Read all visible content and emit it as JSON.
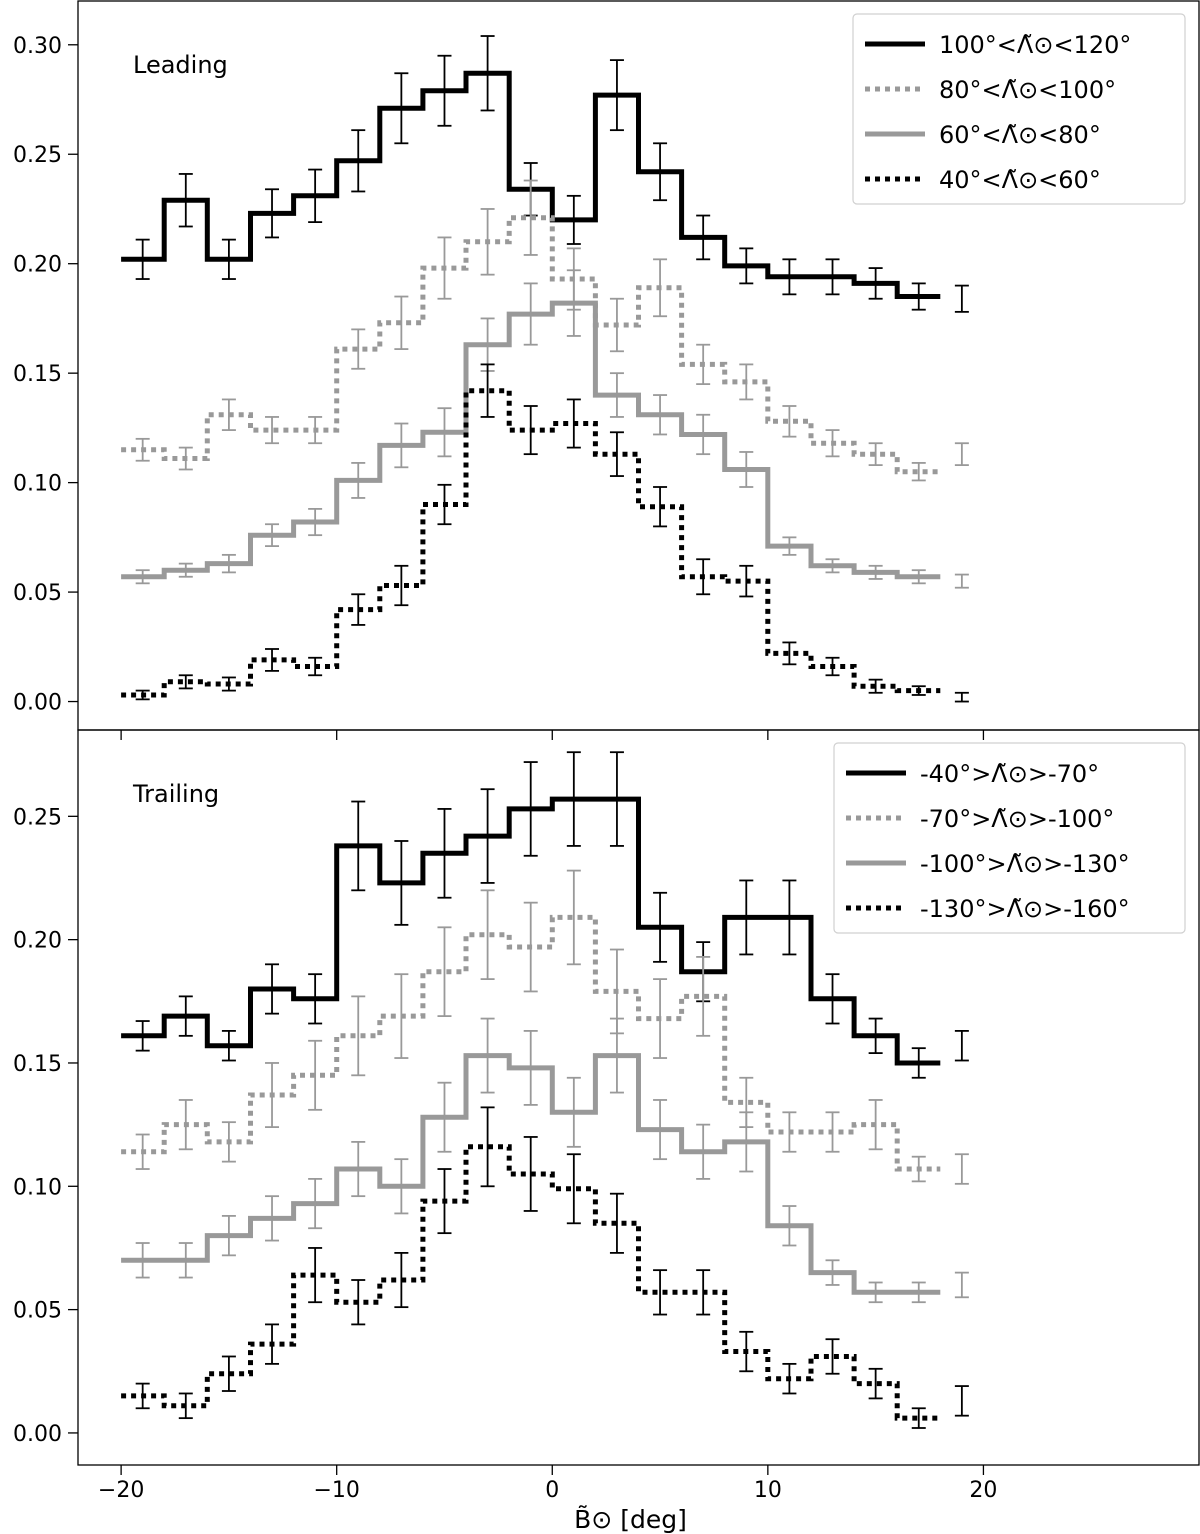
{
  "figure": {
    "xlabel": "B̃⊙ [deg]",
    "xticks": [
      -20,
      -10,
      0,
      10,
      20
    ]
  },
  "chart_data": [
    {
      "type": "line",
      "panel_label": "Leading",
      "xlim": [
        -22,
        30
      ],
      "ylim": [
        -0.013,
        0.32
      ],
      "yticks": [
        "0.00",
        "0.05",
        "0.10",
        "0.15",
        "0.20",
        "0.25",
        "0.30"
      ],
      "ytick_values": [
        0,
        0.05,
        0.1,
        0.15,
        0.2,
        0.25,
        0.3
      ],
      "legend_position": "top-right",
      "x": [
        -19,
        -17,
        -15,
        -13,
        -11,
        -9,
        -7,
        -5,
        -3,
        -1,
        1,
        3,
        5,
        7,
        9,
        11,
        13,
        15,
        17,
        19
      ],
      "series": [
        {
          "name": "100°<Λ̃⊙<120°",
          "color": "#000000",
          "style": "solid",
          "values": [
            0.202,
            0.229,
            0.202,
            0.223,
            0.231,
            0.247,
            0.271,
            0.279,
            0.287,
            0.234,
            0.22,
            0.277,
            0.242,
            0.212,
            0.199,
            0.194,
            0.194,
            0.191,
            0.185,
            0.184
          ],
          "errors": [
            0.009,
            0.012,
            0.009,
            0.011,
            0.012,
            0.014,
            0.016,
            0.016,
            0.017,
            0.012,
            0.011,
            0.016,
            0.013,
            0.01,
            0.008,
            0.008,
            0.008,
            0.007,
            0.006,
            0.006
          ]
        },
        {
          "name": "80°<Λ̃⊙<100°",
          "color": "#999999",
          "style": "dotted",
          "values": [
            0.115,
            0.111,
            0.131,
            0.124,
            0.124,
            0.161,
            0.173,
            0.198,
            0.21,
            0.221,
            0.193,
            0.172,
            0.189,
            0.154,
            0.146,
            0.128,
            0.118,
            0.113,
            0.105,
            0.113
          ],
          "errors": [
            0.005,
            0.005,
            0.007,
            0.006,
            0.006,
            0.009,
            0.012,
            0.014,
            0.015,
            0.017,
            0.014,
            0.012,
            0.013,
            0.009,
            0.008,
            0.007,
            0.006,
            0.005,
            0.004,
            0.005
          ]
        },
        {
          "name": "60°<Λ̃⊙<80°",
          "color": "#999999",
          "style": "solid",
          "values": [
            0.057,
            0.06,
            0.063,
            0.076,
            0.082,
            0.101,
            0.117,
            0.123,
            0.163,
            0.177,
            0.182,
            0.14,
            0.131,
            0.122,
            0.106,
            0.071,
            0.062,
            0.059,
            0.057,
            0.055
          ],
          "errors": [
            0.003,
            0.003,
            0.004,
            0.005,
            0.006,
            0.008,
            0.01,
            0.011,
            0.012,
            0.014,
            0.015,
            0.01,
            0.009,
            0.009,
            0.008,
            0.004,
            0.003,
            0.003,
            0.003,
            0.003
          ]
        },
        {
          "name": "40°<Λ̃⊙<60°",
          "color": "#000000",
          "style": "dotted",
          "values": [
            0.003,
            0.009,
            0.008,
            0.019,
            0.016,
            0.042,
            0.053,
            0.09,
            0.142,
            0.124,
            0.127,
            0.113,
            0.089,
            0.057,
            0.055,
            0.022,
            0.016,
            0.007,
            0.005,
            0.002
          ],
          "errors": [
            0.002,
            0.003,
            0.003,
            0.005,
            0.004,
            0.007,
            0.009,
            0.009,
            0.012,
            0.011,
            0.011,
            0.01,
            0.009,
            0.008,
            0.007,
            0.005,
            0.004,
            0.003,
            0.002,
            0.002
          ]
        }
      ]
    },
    {
      "type": "line",
      "panel_label": "Trailing",
      "xlim": [
        -22,
        30
      ],
      "ylim": [
        -0.013,
        0.285
      ],
      "yticks": [
        "0.00",
        "0.05",
        "0.10",
        "0.15",
        "0.20",
        "0.25"
      ],
      "ytick_values": [
        0,
        0.05,
        0.1,
        0.15,
        0.2,
        0.25
      ],
      "legend_position": "top-right",
      "x": [
        -19,
        -17,
        -15,
        -13,
        -11,
        -9,
        -7,
        -5,
        -3,
        -1,
        1,
        3,
        5,
        7,
        9,
        11,
        13,
        15,
        17,
        19
      ],
      "series": [
        {
          "name": "-40°>Λ̃⊙>-70°",
          "color": "#000000",
          "style": "solid",
          "values": [
            0.161,
            0.169,
            0.157,
            0.18,
            0.176,
            0.238,
            0.223,
            0.235,
            0.242,
            0.253,
            0.257,
            0.257,
            0.205,
            0.187,
            0.209,
            0.209,
            0.176,
            0.161,
            0.15,
            0.157
          ],
          "errors": [
            0.006,
            0.008,
            0.006,
            0.01,
            0.01,
            0.018,
            0.017,
            0.018,
            0.019,
            0.019,
            0.019,
            0.019,
            0.014,
            0.012,
            0.015,
            0.015,
            0.01,
            0.007,
            0.006,
            0.006
          ]
        },
        {
          "name": "-70°>Λ̃⊙>-100°",
          "color": "#999999",
          "style": "dotted",
          "values": [
            0.114,
            0.125,
            0.118,
            0.137,
            0.145,
            0.161,
            0.169,
            0.187,
            0.202,
            0.197,
            0.209,
            0.179,
            0.168,
            0.177,
            0.134,
            0.122,
            0.122,
            0.125,
            0.107,
            0.107
          ],
          "errors": [
            0.007,
            0.01,
            0.008,
            0.013,
            0.014,
            0.016,
            0.017,
            0.018,
            0.018,
            0.018,
            0.019,
            0.017,
            0.016,
            0.016,
            0.01,
            0.008,
            0.008,
            0.01,
            0.005,
            0.006
          ]
        },
        {
          "name": "-100°>Λ̃⊙>-130°",
          "color": "#999999",
          "style": "solid",
          "values": [
            0.07,
            0.07,
            0.08,
            0.087,
            0.093,
            0.107,
            0.1,
            0.128,
            0.153,
            0.148,
            0.13,
            0.153,
            0.123,
            0.114,
            0.118,
            0.084,
            0.065,
            0.057,
            0.057,
            0.06
          ],
          "errors": [
            0.007,
            0.007,
            0.008,
            0.009,
            0.01,
            0.011,
            0.011,
            0.014,
            0.015,
            0.015,
            0.014,
            0.015,
            0.012,
            0.011,
            0.012,
            0.008,
            0.005,
            0.004,
            0.004,
            0.005
          ]
        },
        {
          "name": "-130°>Λ̃⊙>-160°",
          "color": "#000000",
          "style": "dotted",
          "values": [
            0.015,
            0.011,
            0.024,
            0.036,
            0.064,
            0.053,
            0.062,
            0.094,
            0.116,
            0.105,
            0.099,
            0.085,
            0.057,
            0.057,
            0.033,
            0.022,
            0.031,
            0.02,
            0.006,
            0.013
          ],
          "errors": [
            0.005,
            0.005,
            0.007,
            0.008,
            0.011,
            0.009,
            0.011,
            0.013,
            0.016,
            0.015,
            0.014,
            0.012,
            0.009,
            0.009,
            0.008,
            0.006,
            0.007,
            0.006,
            0.004,
            0.006
          ]
        }
      ]
    }
  ]
}
